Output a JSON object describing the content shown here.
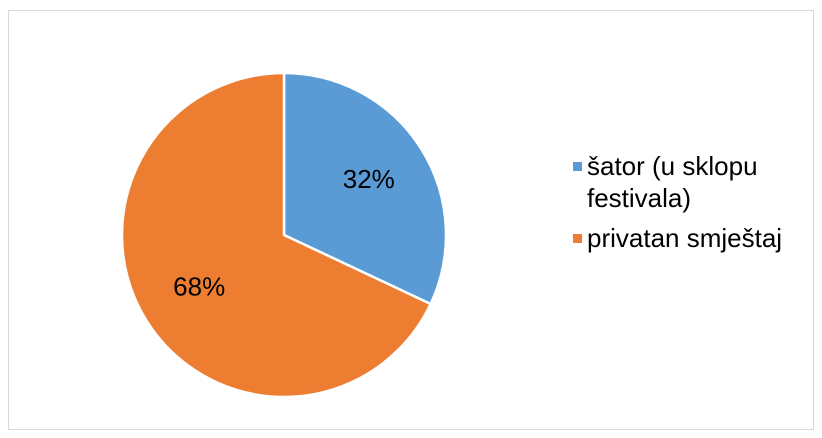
{
  "chart_data": {
    "type": "pie",
    "categories": [
      "šator (u sklopu festivala)",
      "privatan smještaj"
    ],
    "values": [
      32,
      68
    ],
    "labels": [
      "32%",
      "68%"
    ],
    "colors": [
      "#5b9bd5",
      "#ed7d31"
    ],
    "legend": "right",
    "start_angle": "12 o'clock, clockwise"
  },
  "legend": {
    "items": [
      {
        "label": "šator (u sklopu festivala)",
        "color": "#5b9bd5"
      },
      {
        "label": "privatan smještaj",
        "color": "#ed7d31"
      }
    ]
  }
}
